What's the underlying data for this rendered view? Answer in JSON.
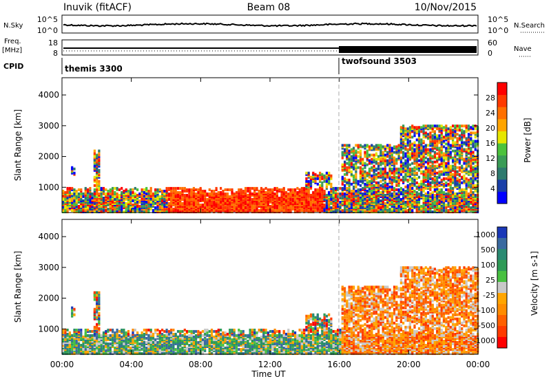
{
  "header": {
    "station": "Inuvik (fitACF)",
    "beam": "Beam 08",
    "date": "10/Nov/2015"
  },
  "sky_panel": {
    "left_label": "N.Sky",
    "right_label": "N.Search",
    "left_ticks": [
      "10^5",
      "10^0"
    ],
    "right_ticks": [
      "10^5",
      "10^0"
    ]
  },
  "freq_panel": {
    "left_label_1": "Freq.",
    "left_label_2": "[MHz]",
    "right_label": "Nave",
    "left_ticks": [
      "18",
      "8"
    ],
    "right_ticks": [
      "60",
      "0"
    ]
  },
  "cpid": {
    "label": "CPID",
    "modes": [
      {
        "name": "themis 3300",
        "start_hour": 0
      },
      {
        "name": "twofsound 3503",
        "start_hour": 16
      }
    ]
  },
  "colors": {
    "power": [
      "#0000ff",
      "#1a3fa8",
      "#2e7a6e",
      "#3a9c56",
      "#4cc23c",
      "#e6e600",
      "#ffa500",
      "#ff7000",
      "#ff3a00",
      "#ff0000"
    ],
    "velocity": [
      "#1a38b8",
      "#3a6aa0",
      "#2a8a72",
      "#2e9a56",
      "#48c040",
      "#c8c8c8",
      "#ffa500",
      "#ff8c00",
      "#ff6000",
      "#ff3a00",
      "#ff0000"
    ]
  },
  "chart_data": [
    {
      "type": "heatmap",
      "name": "power",
      "ylabel": "Slant Range [km]",
      "ylim": [
        180,
        4560
      ],
      "yticks": [
        1000,
        2000,
        3000,
        4000
      ],
      "xlim": [
        0,
        24
      ],
      "colorbar": {
        "label": "Power [dB]",
        "range": [
          0,
          32
        ],
        "ticks": [
          4,
          8,
          12,
          16,
          20,
          24,
          28
        ]
      }
    },
    {
      "type": "heatmap",
      "name": "velocity",
      "ylabel": "Slant Range [km]",
      "ylim": [
        180,
        4560
      ],
      "yticks": [
        1000,
        2000,
        3000,
        4000
      ],
      "xlim": [
        0,
        24
      ],
      "xlabel": "Time UT",
      "xticks": [
        "00:00",
        "04:00",
        "08:00",
        "12:00",
        "16:00",
        "20:00",
        "00:00"
      ],
      "colorbar": {
        "label": "Velocity [m s-1]",
        "ticks": [
          "1000",
          "500",
          "100",
          "25",
          "-25",
          "-100",
          "-500",
          "-1000"
        ]
      }
    }
  ]
}
